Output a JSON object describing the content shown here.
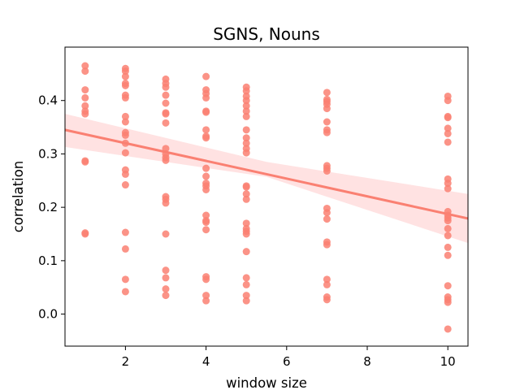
{
  "chart_data": {
    "type": "scatter",
    "title": "SGNS, Nouns",
    "xlabel": "window size",
    "ylabel": "correlation",
    "xlim": [
      0.5,
      10.5
    ],
    "ylim": [
      -0.06,
      0.5
    ],
    "xticks": [
      2,
      4,
      6,
      8,
      10
    ],
    "yticks": [
      0.0,
      0.1,
      0.2,
      0.3,
      0.4
    ],
    "xtick_labels": [
      "2",
      "4",
      "6",
      "8",
      "10"
    ],
    "ytick_labels": [
      "0.0",
      "0.1",
      "0.2",
      "0.3",
      "0.4"
    ],
    "grid": false,
    "point_color": "#fa8072",
    "regression": {
      "start": [
        0.5,
        0.345
      ],
      "end": [
        10.5,
        0.179
      ],
      "ci_upper": [
        [
          0.5,
          0.375
        ],
        [
          5.5,
          0.285
        ],
        [
          10.5,
          0.225
        ]
      ],
      "ci_lower": [
        [
          0.5,
          0.313
        ],
        [
          5.5,
          0.257
        ],
        [
          10.5,
          0.133
        ]
      ],
      "line_color": "#fa8072",
      "band_color": "#ffd6d6"
    },
    "series": [
      {
        "points": [
          [
            1,
            0.465
          ],
          [
            1,
            0.455
          ],
          [
            1,
            0.42
          ],
          [
            1,
            0.405
          ],
          [
            1,
            0.39
          ],
          [
            1,
            0.38
          ],
          [
            1,
            0.375
          ],
          [
            1,
            0.287
          ],
          [
            1,
            0.285
          ],
          [
            1,
            0.152
          ],
          [
            1,
            0.15
          ],
          [
            2,
            0.46
          ],
          [
            2,
            0.455
          ],
          [
            2,
            0.445
          ],
          [
            2,
            0.432
          ],
          [
            2,
            0.428
          ],
          [
            2,
            0.41
          ],
          [
            2,
            0.405
          ],
          [
            2,
            0.37
          ],
          [
            2,
            0.36
          ],
          [
            2,
            0.34
          ],
          [
            2,
            0.335
          ],
          [
            2,
            0.32
          ],
          [
            2,
            0.302
          ],
          [
            2,
            0.27
          ],
          [
            2,
            0.262
          ],
          [
            2,
            0.242
          ],
          [
            2,
            0.153
          ],
          [
            2,
            0.122
          ],
          [
            2,
            0.065
          ],
          [
            2,
            0.042
          ],
          [
            3,
            0.44
          ],
          [
            3,
            0.432
          ],
          [
            3,
            0.425
          ],
          [
            3,
            0.41
          ],
          [
            3,
            0.395
          ],
          [
            3,
            0.377
          ],
          [
            3,
            0.375
          ],
          [
            3,
            0.358
          ],
          [
            3,
            0.31
          ],
          [
            3,
            0.3
          ],
          [
            3,
            0.293
          ],
          [
            3,
            0.288
          ],
          [
            3,
            0.22
          ],
          [
            3,
            0.215
          ],
          [
            3,
            0.208
          ],
          [
            3,
            0.15
          ],
          [
            3,
            0.082
          ],
          [
            3,
            0.068
          ],
          [
            3,
            0.047
          ],
          [
            3,
            0.035
          ],
          [
            4,
            0.445
          ],
          [
            4,
            0.42
          ],
          [
            4,
            0.413
          ],
          [
            4,
            0.405
          ],
          [
            4,
            0.38
          ],
          [
            4,
            0.378
          ],
          [
            4,
            0.345
          ],
          [
            4,
            0.333
          ],
          [
            4,
            0.33
          ],
          [
            4,
            0.273
          ],
          [
            4,
            0.258
          ],
          [
            4,
            0.245
          ],
          [
            4,
            0.24
          ],
          [
            4,
            0.233
          ],
          [
            4,
            0.185
          ],
          [
            4,
            0.175
          ],
          [
            4,
            0.172
          ],
          [
            4,
            0.158
          ],
          [
            4,
            0.07
          ],
          [
            4,
            0.065
          ],
          [
            4,
            0.035
          ],
          [
            4,
            0.025
          ],
          [
            5,
            0.425
          ],
          [
            5,
            0.418
          ],
          [
            5,
            0.408
          ],
          [
            5,
            0.4
          ],
          [
            5,
            0.39
          ],
          [
            5,
            0.38
          ],
          [
            5,
            0.37
          ],
          [
            5,
            0.345
          ],
          [
            5,
            0.33
          ],
          [
            5,
            0.32
          ],
          [
            5,
            0.31
          ],
          [
            5,
            0.302
          ],
          [
            5,
            0.24
          ],
          [
            5,
            0.238
          ],
          [
            5,
            0.225
          ],
          [
            5,
            0.215
          ],
          [
            5,
            0.17
          ],
          [
            5,
            0.16
          ],
          [
            5,
            0.155
          ],
          [
            5,
            0.15
          ],
          [
            5,
            0.117
          ],
          [
            5,
            0.068
          ],
          [
            5,
            0.055
          ],
          [
            5,
            0.035
          ],
          [
            5,
            0.025
          ],
          [
            7,
            0.415
          ],
          [
            7,
            0.402
          ],
          [
            7,
            0.398
          ],
          [
            7,
            0.393
          ],
          [
            7,
            0.385
          ],
          [
            7,
            0.36
          ],
          [
            7,
            0.345
          ],
          [
            7,
            0.34
          ],
          [
            7,
            0.278
          ],
          [
            7,
            0.273
          ],
          [
            7,
            0.268
          ],
          [
            7,
            0.198
          ],
          [
            7,
            0.19
          ],
          [
            7,
            0.178
          ],
          [
            7,
            0.135
          ],
          [
            7,
            0.13
          ],
          [
            7,
            0.065
          ],
          [
            7,
            0.055
          ],
          [
            7,
            0.032
          ],
          [
            7,
            0.027
          ],
          [
            10,
            0.408
          ],
          [
            10,
            0.4
          ],
          [
            10,
            0.37
          ],
          [
            10,
            0.368
          ],
          [
            10,
            0.348
          ],
          [
            10,
            0.338
          ],
          [
            10,
            0.322
          ],
          [
            10,
            0.253
          ],
          [
            10,
            0.245
          ],
          [
            10,
            0.235
          ],
          [
            10,
            0.192
          ],
          [
            10,
            0.185
          ],
          [
            10,
            0.18
          ],
          [
            10,
            0.175
          ],
          [
            10,
            0.16
          ],
          [
            10,
            0.147
          ],
          [
            10,
            0.125
          ],
          [
            10,
            0.11
          ],
          [
            10,
            0.053
          ],
          [
            10,
            0.032
          ],
          [
            10,
            0.027
          ],
          [
            10,
            0.022
          ],
          [
            10,
            -0.028
          ]
        ]
      }
    ]
  }
}
